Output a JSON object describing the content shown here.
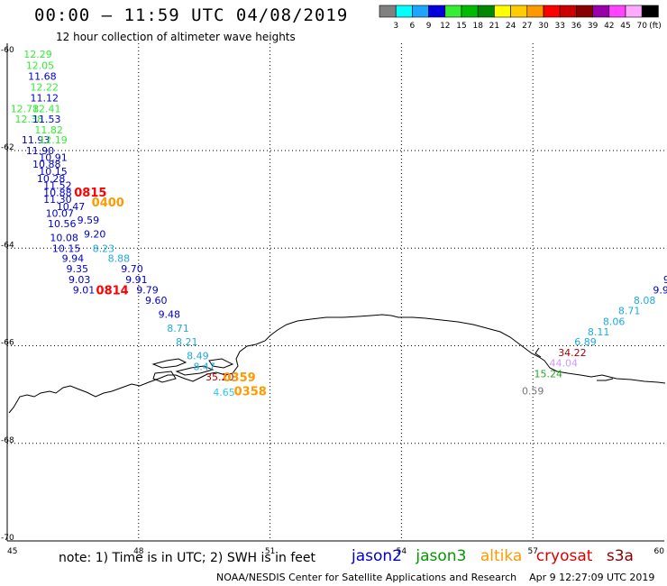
{
  "header": {
    "title": "00:00 – 11:59 UTC 04/08/2019",
    "subtitle": "12 hour collection of altimeter wave heights"
  },
  "colorbar": {
    "unit": "(ft)",
    "levels": [
      {
        "label": "3",
        "color": "#808080"
      },
      {
        "label": "6",
        "color": "#00ffff"
      },
      {
        "label": "9",
        "color": "#1ea5ff"
      },
      {
        "label": "12",
        "color": "#0000dd"
      },
      {
        "label": "15",
        "color": "#33ee33"
      },
      {
        "label": "18",
        "color": "#00bb00"
      },
      {
        "label": "21",
        "color": "#008800"
      },
      {
        "label": "24",
        "color": "#ffff00"
      },
      {
        "label": "27",
        "color": "#ffcc00"
      },
      {
        "label": "30",
        "color": "#ff9900"
      },
      {
        "label": "33",
        "color": "#ff0000"
      },
      {
        "label": "36",
        "color": "#cc0000"
      },
      {
        "label": "39",
        "color": "#880000"
      },
      {
        "label": "42",
        "color": "#9900aa"
      },
      {
        "label": "45",
        "color": "#ff44ff"
      },
      {
        "label": "70",
        "color": "#ffaaff"
      },
      {
        "label": "",
        "color": "#000000"
      }
    ]
  },
  "axes": {
    "lon_ticks": [
      "45",
      "48",
      "51",
      "54",
      "57",
      "60"
    ],
    "lat_ticks": [
      "-60",
      "-62",
      "-64",
      "-66",
      "-68",
      "-70"
    ]
  },
  "track_points": {
    "left_track": [
      {
        "text": "12.29",
        "lon": 45.7,
        "lat": -60.02,
        "color": "#33ee33"
      },
      {
        "text": "12.05",
        "lon": 45.75,
        "lat": -60.25,
        "color": "#33ee33"
      },
      {
        "text": "11.68",
        "lon": 45.8,
        "lat": -60.47,
        "color": "#0000cc"
      },
      {
        "text": "12.22",
        "lon": 45.85,
        "lat": -60.7,
        "color": "#33ee33"
      },
      {
        "text": "11.12",
        "lon": 45.85,
        "lat": -60.92,
        "color": "#0000cc"
      },
      {
        "text": "12.41",
        "lon": 45.9,
        "lat": -61.14,
        "color": "#33ee33"
      },
      {
        "text": "12.78",
        "lon": 45.4,
        "lat": -61.14,
        "color": "#33ee33"
      },
      {
        "text": "12.38",
        "lon": 45.5,
        "lat": -61.35,
        "color": "#33ee33"
      },
      {
        "text": "11.53",
        "lon": 45.9,
        "lat": -61.35,
        "color": "#0000cc"
      },
      {
        "text": "11.82",
        "lon": 45.95,
        "lat": -61.57,
        "color": "#33ee33"
      },
      {
        "text": "11.93",
        "lon": 45.65,
        "lat": -61.78,
        "color": "#0000cc"
      },
      {
        "text": "12.19",
        "lon": 46.05,
        "lat": -61.78,
        "color": "#33ee33"
      },
      {
        "text": "11.90",
        "lon": 45.75,
        "lat": -62.0,
        "color": "#0000cc"
      },
      {
        "text": "10.91",
        "lon": 46.05,
        "lat": -62.14,
        "color": "#0000cc"
      },
      {
        "text": "10.88",
        "lon": 45.9,
        "lat": -62.28,
        "color": "#0000cc"
      },
      {
        "text": "10.15",
        "lon": 46.05,
        "lat": -62.42,
        "color": "#0000cc"
      },
      {
        "text": "10.28",
        "lon": 46.0,
        "lat": -62.57,
        "color": "#0000cc"
      },
      {
        "text": "11.52",
        "lon": 46.15,
        "lat": -62.71,
        "color": "#0000cc"
      },
      {
        "text": "10.88",
        "lon": 46.15,
        "lat": -62.86,
        "color": "#0000cc"
      },
      {
        "text": "11.30",
        "lon": 46.15,
        "lat": -63.0,
        "color": "#0000cc"
      },
      {
        "text": "10.47",
        "lon": 46.45,
        "lat": -63.14,
        "color": "#0000cc"
      },
      {
        "text": "10.07",
        "lon": 46.2,
        "lat": -63.28,
        "color": "#0000cc"
      },
      {
        "text": "9.59",
        "lon": 46.85,
        "lat": -63.42,
        "color": "#0000cc"
      },
      {
        "text": "10.56",
        "lon": 46.25,
        "lat": -63.5,
        "color": "#0000cc"
      },
      {
        "text": "9.20",
        "lon": 47.0,
        "lat": -63.71,
        "color": "#0000cc"
      },
      {
        "text": "10.08",
        "lon": 46.3,
        "lat": -63.78,
        "color": "#0000cc"
      },
      {
        "text": "8.23",
        "lon": 47.2,
        "lat": -64.0,
        "color": "#1eaadd"
      },
      {
        "text": "10.15",
        "lon": 46.35,
        "lat": -64.0,
        "color": "#0000cc"
      },
      {
        "text": "8.88",
        "lon": 47.55,
        "lat": -64.21,
        "color": "#1eaadd"
      },
      {
        "text": "9.94",
        "lon": 46.5,
        "lat": -64.21,
        "color": "#0000cc"
      },
      {
        "text": "9.70",
        "lon": 47.85,
        "lat": -64.42,
        "color": "#0000cc"
      },
      {
        "text": "9.35",
        "lon": 46.6,
        "lat": -64.42,
        "color": "#0000cc"
      },
      {
        "text": "9.91",
        "lon": 47.95,
        "lat": -64.64,
        "color": "#0000cc"
      },
      {
        "text": "9.03",
        "lon": 46.65,
        "lat": -64.64,
        "color": "#0000cc"
      },
      {
        "text": "9.79",
        "lon": 48.2,
        "lat": -64.85,
        "color": "#0000cc"
      },
      {
        "text": "9.01",
        "lon": 46.75,
        "lat": -64.85,
        "color": "#0000cc"
      },
      {
        "text": "9.60",
        "lon": 48.4,
        "lat": -65.07,
        "color": "#0000cc"
      },
      {
        "text": "9.48",
        "lon": 48.7,
        "lat": -65.35,
        "color": "#0000cc"
      },
      {
        "text": "8.71",
        "lon": 48.9,
        "lat": -65.64,
        "color": "#1eaadd"
      },
      {
        "text": "8.21",
        "lon": 49.1,
        "lat": -65.92,
        "color": "#1eaadd"
      },
      {
        "text": "8.49",
        "lon": 49.35,
        "lat": -66.2,
        "color": "#1eaadd"
      },
      {
        "text": "8.47",
        "lon": 49.5,
        "lat": -66.42,
        "color": "#1eaadd"
      },
      {
        "text": "35.20",
        "lon": 49.85,
        "lat": -66.64,
        "color": "#aa0000"
      },
      {
        "text": "4.65",
        "lon": 49.95,
        "lat": -66.95,
        "color": "#22ccee"
      }
    ],
    "right_track": [
      {
        "text": "9",
        "lon": 60.05,
        "lat": -64.64,
        "color": "#0000cc"
      },
      {
        "text": "9.9",
        "lon": 59.92,
        "lat": -64.85,
        "color": "#0000cc"
      },
      {
        "text": "8.08",
        "lon": 59.55,
        "lat": -65.07,
        "color": "#1eaadd"
      },
      {
        "text": "8.71",
        "lon": 59.2,
        "lat": -65.28,
        "color": "#1eaadd"
      },
      {
        "text": "8.06",
        "lon": 58.85,
        "lat": -65.5,
        "color": "#1eaadd"
      },
      {
        "text": "8.11",
        "lon": 58.5,
        "lat": -65.71,
        "color": "#1eaadd"
      },
      {
        "text": "6.89",
        "lon": 58.2,
        "lat": -65.92,
        "color": "#1eaadd"
      },
      {
        "text": "34.22",
        "lon": 57.9,
        "lat": -66.14,
        "color": "#aa0000"
      },
      {
        "text": "44.04",
        "lon": 57.7,
        "lat": -66.35,
        "color": "#cc99ff"
      },
      {
        "text": "15.24",
        "lon": 57.35,
        "lat": -66.57,
        "color": "#22aa22"
      },
      {
        "text": "0.59",
        "lon": 57.0,
        "lat": -66.92,
        "color": "#777777"
      }
    ]
  },
  "time_labels": [
    {
      "text": "0815",
      "lon": 46.9,
      "lat": -62.85,
      "color": "#ff0000"
    },
    {
      "text": "0400",
      "lon": 47.3,
      "lat": -63.05,
      "color": "#ff9900"
    },
    {
      "text": "0814",
      "lon": 47.4,
      "lat": -64.85,
      "color": "#ff0000"
    },
    {
      "text": "0359",
      "lon": 50.3,
      "lat": -66.64,
      "color": "#ff9900"
    },
    {
      "text": "0358",
      "lon": 50.55,
      "lat": -66.92,
      "color": "#ff9900"
    }
  ],
  "note": "note:  1) Time is in UTC;  2) SWH is in feet",
  "satellites": [
    {
      "name": "jason2",
      "color": "#0000cc"
    },
    {
      "name": "jason3",
      "color": "#009900"
    },
    {
      "name": "altika",
      "color": "#ff9900"
    },
    {
      "name": "cryosat",
      "color": "#dd0000"
    },
    {
      "name": "s3a",
      "color": "#880000"
    }
  ],
  "footer": {
    "center": "NOAA/NESDIS Center for Satellite Applications and Research",
    "timestamp": "Apr  9 12:27:09 UTC 2019"
  }
}
